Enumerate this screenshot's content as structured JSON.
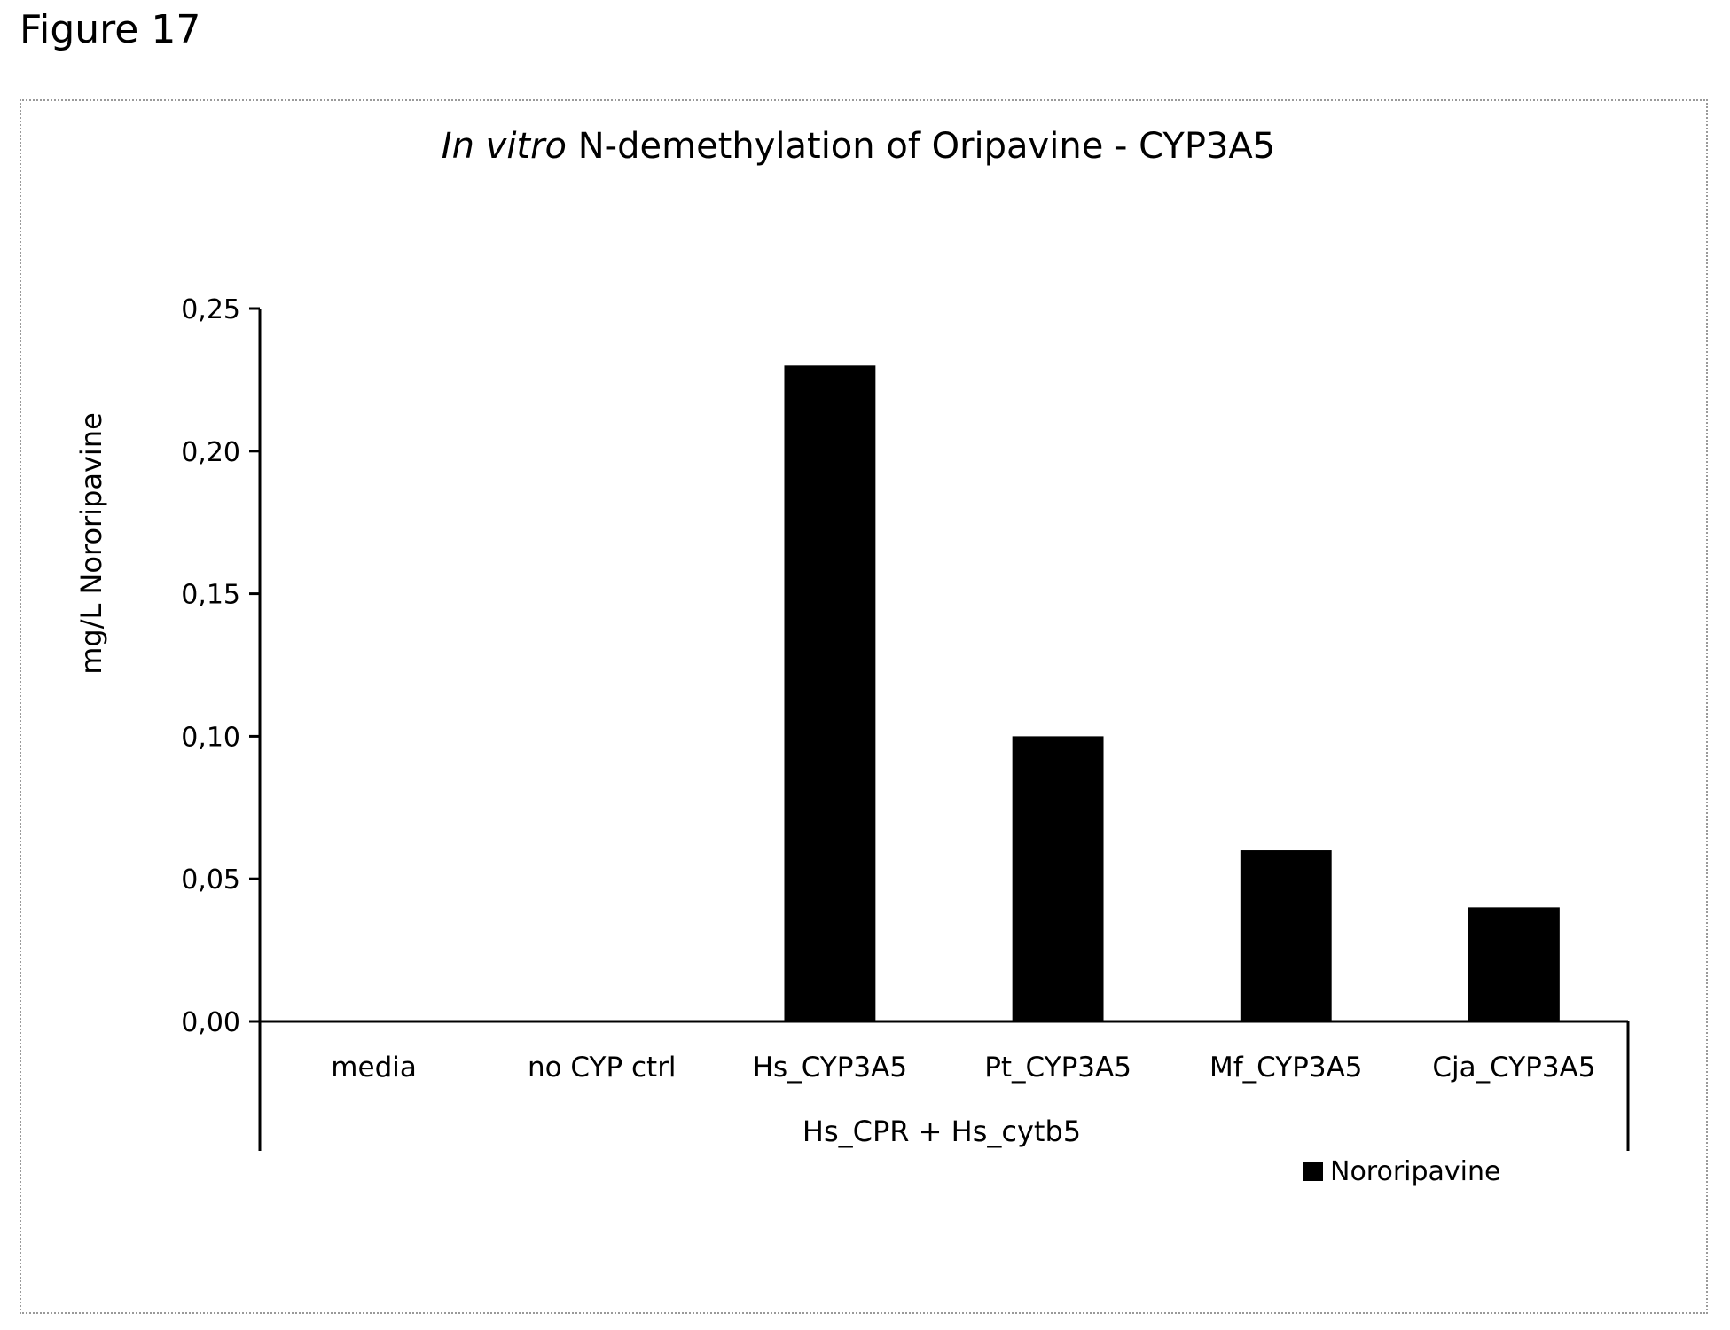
{
  "figure_label": "Figure 17",
  "chart_data": {
    "type": "bar",
    "title_italic": "In vitro",
    "title_rest": " N-demethylation of Oripavine - CYP3A5",
    "ylabel": "mg/L Nororipavine",
    "ylim": [
      0,
      0.25
    ],
    "yticks": [
      "0,00",
      "0,05",
      "0,10",
      "0,15",
      "0,20",
      "0,25"
    ],
    "categories": [
      "media",
      "no CYP ctrl",
      "Hs_CYP3A5",
      "Pt_CYP3A5",
      "Mf_CYP3A5",
      "Cja_CYP3A5"
    ],
    "group_label": "Hs_CPR + Hs_cytb5",
    "series": [
      {
        "name": "Nororipavine",
        "color": "#000000",
        "values": [
          0,
          0,
          0.23,
          0.1,
          0.06,
          0.04
        ]
      }
    ],
    "grid": false,
    "legend_position": "bottom-right"
  }
}
